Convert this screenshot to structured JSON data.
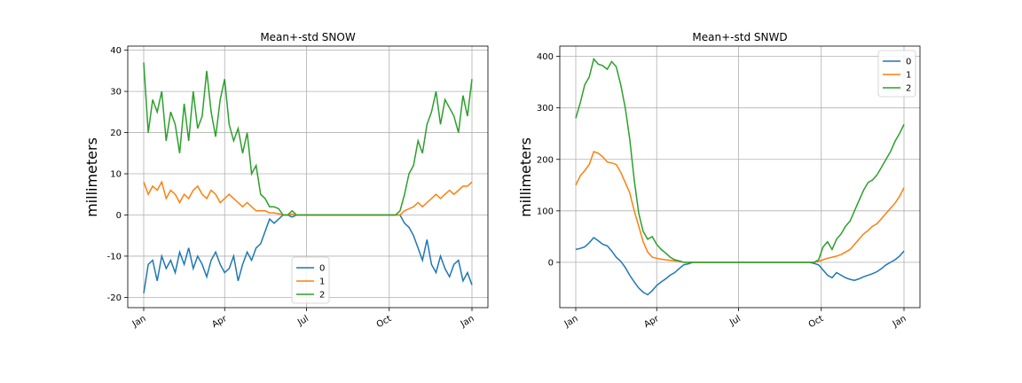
{
  "colors": {
    "series_0": "#1f77b4",
    "series_1": "#ff7f0e",
    "series_2": "#2ca02c",
    "grid": "#b0b0b0",
    "axes": "#000000"
  },
  "chart_data": [
    {
      "type": "line",
      "title": "Mean+-std   SNOW",
      "xlabel": "",
      "ylabel": "millimeters",
      "xlim": [
        0,
        365
      ],
      "ylim": [
        -22.5,
        41
      ],
      "yticks": [
        -20,
        -10,
        0,
        10,
        20,
        30,
        40
      ],
      "xticks": [
        {
          "day": 0,
          "label": "Jan"
        },
        {
          "day": 90,
          "label": "Apr"
        },
        {
          "day": 181,
          "label": "Jul"
        },
        {
          "day": 273,
          "label": "Oct"
        },
        {
          "day": 365,
          "label": "Jan"
        }
      ],
      "grid": true,
      "legend": {
        "position": "lower-center",
        "labels": [
          "0",
          "1",
          "2"
        ]
      },
      "series": [
        {
          "name": "0",
          "x": [
            0,
            5,
            10,
            15,
            20,
            25,
            30,
            35,
            40,
            45,
            50,
            55,
            60,
            65,
            70,
            75,
            80,
            85,
            90,
            95,
            100,
            105,
            110,
            115,
            120,
            125,
            130,
            135,
            140,
            145,
            150,
            155,
            160,
            165,
            170,
            175,
            180,
            185,
            190,
            195,
            200,
            205,
            210,
            215,
            220,
            225,
            230,
            235,
            240,
            245,
            250,
            255,
            260,
            265,
            270,
            275,
            280,
            285,
            290,
            295,
            300,
            305,
            310,
            315,
            320,
            325,
            330,
            335,
            340,
            345,
            350,
            355,
            360,
            365
          ],
          "values": [
            -19,
            -12,
            -11,
            -16,
            -10,
            -13,
            -11,
            -14,
            -9,
            -12,
            -8,
            -13,
            -10,
            -12,
            -15,
            -11,
            -9,
            -12,
            -14,
            -13,
            -10,
            -16,
            -12,
            -9,
            -11,
            -8,
            -7,
            -4,
            -1,
            -2,
            -1,
            0,
            0,
            -0.5,
            0,
            0,
            0,
            0,
            0,
            0,
            0,
            0,
            0,
            0,
            0,
            0,
            0,
            0,
            0,
            0,
            0,
            0,
            0,
            0,
            0,
            0,
            0,
            0,
            -2,
            -3,
            -5,
            -8,
            -11,
            -6,
            -12,
            -14,
            -10,
            -13,
            -15,
            -12,
            -11,
            -16,
            -14,
            -17
          ]
        },
        {
          "name": "1",
          "x": [
            0,
            5,
            10,
            15,
            20,
            25,
            30,
            35,
            40,
            45,
            50,
            55,
            60,
            65,
            70,
            75,
            80,
            85,
            90,
            95,
            100,
            105,
            110,
            115,
            120,
            125,
            130,
            135,
            140,
            145,
            150,
            155,
            160,
            165,
            170,
            175,
            180,
            185,
            190,
            195,
            200,
            205,
            210,
            215,
            220,
            225,
            230,
            235,
            240,
            245,
            250,
            255,
            260,
            265,
            270,
            275,
            280,
            285,
            290,
            295,
            300,
            305,
            310,
            315,
            320,
            325,
            330,
            335,
            340,
            345,
            350,
            355,
            360,
            365
          ],
          "values": [
            8,
            5,
            7,
            6,
            8,
            4,
            6,
            5,
            3,
            5,
            4,
            6,
            7,
            5,
            4,
            6,
            5,
            3,
            4,
            5,
            4,
            3,
            2,
            3,
            2,
            1,
            1,
            1,
            0.5,
            0.5,
            0.3,
            0,
            0,
            0.2,
            0,
            0,
            0,
            0,
            0,
            0,
            0,
            0,
            0,
            0,
            0,
            0,
            0,
            0,
            0,
            0,
            0,
            0,
            0,
            0,
            0,
            0,
            0,
            0,
            1,
            1.5,
            2,
            3,
            2,
            3,
            4,
            5,
            4,
            5,
            6,
            5,
            6,
            7,
            7,
            8
          ]
        },
        {
          "name": "2",
          "x": [
            0,
            5,
            10,
            15,
            20,
            25,
            30,
            35,
            40,
            45,
            50,
            55,
            60,
            65,
            70,
            75,
            80,
            85,
            90,
            95,
            100,
            105,
            110,
            115,
            120,
            125,
            130,
            135,
            140,
            145,
            150,
            155,
            160,
            165,
            170,
            175,
            180,
            185,
            190,
            195,
            200,
            205,
            210,
            215,
            220,
            225,
            230,
            235,
            240,
            245,
            250,
            255,
            260,
            265,
            270,
            275,
            280,
            285,
            290,
            295,
            300,
            305,
            310,
            315,
            320,
            325,
            330,
            335,
            340,
            345,
            350,
            355,
            360,
            365
          ],
          "values": [
            37,
            20,
            28,
            25,
            30,
            18,
            25,
            22,
            15,
            27,
            18,
            30,
            21,
            24,
            35,
            25,
            19,
            28,
            33,
            22,
            18,
            21,
            15,
            20,
            10,
            12,
            5,
            4,
            2,
            2,
            1.5,
            0,
            0,
            1,
            0,
            0,
            0,
            0,
            0,
            0,
            0,
            0,
            0,
            0,
            0,
            0,
            0,
            0,
            0,
            0,
            0,
            0,
            0,
            0,
            0,
            0,
            0,
            1,
            5,
            10,
            12,
            18,
            15,
            22,
            25,
            30,
            22,
            28,
            26,
            24,
            20,
            29,
            24,
            33
          ]
        }
      ]
    },
    {
      "type": "line",
      "title": "Mean+-std   SNWD",
      "xlabel": "",
      "ylabel": "millimeters",
      "xlim": [
        0,
        365
      ],
      "ylim": [
        -88,
        420
      ],
      "yticks": [
        0,
        100,
        200,
        300,
        400
      ],
      "xticks": [
        {
          "day": 0,
          "label": "Jan"
        },
        {
          "day": 90,
          "label": "Apr"
        },
        {
          "day": 181,
          "label": "Jul"
        },
        {
          "day": 273,
          "label": "Oct"
        },
        {
          "day": 365,
          "label": "Jan"
        }
      ],
      "grid": true,
      "legend": {
        "position": "upper-right",
        "labels": [
          "0",
          "1",
          "2"
        ]
      },
      "series": [
        {
          "name": "0",
          "x": [
            0,
            5,
            10,
            15,
            20,
            25,
            30,
            35,
            40,
            45,
            50,
            55,
            60,
            65,
            70,
            75,
            80,
            85,
            90,
            95,
            100,
            105,
            110,
            115,
            120,
            125,
            130,
            135,
            140,
            145,
            150,
            155,
            160,
            165,
            170,
            175,
            180,
            185,
            190,
            195,
            200,
            205,
            210,
            215,
            220,
            225,
            230,
            235,
            240,
            245,
            250,
            255,
            260,
            265,
            270,
            275,
            280,
            285,
            290,
            295,
            300,
            305,
            310,
            315,
            320,
            325,
            330,
            335,
            340,
            345,
            350,
            355,
            360,
            365
          ],
          "values": [
            25,
            27,
            30,
            38,
            48,
            42,
            35,
            32,
            22,
            10,
            2,
            -10,
            -25,
            -38,
            -50,
            -58,
            -63,
            -55,
            -45,
            -38,
            -32,
            -25,
            -20,
            -12,
            -5,
            -3,
            0,
            0,
            0,
            0,
            0,
            0,
            0,
            0,
            0,
            0,
            0,
            0,
            0,
            0,
            0,
            0,
            0,
            0,
            0,
            0,
            0,
            0,
            0,
            0,
            0,
            0,
            0,
            -2,
            -5,
            -15,
            -25,
            -30,
            -20,
            -25,
            -30,
            -33,
            -35,
            -32,
            -28,
            -25,
            -22,
            -18,
            -12,
            -5,
            0,
            5,
            12,
            22
          ]
        },
        {
          "name": "1",
          "x": [
            0,
            5,
            10,
            15,
            20,
            25,
            30,
            35,
            40,
            45,
            50,
            55,
            60,
            65,
            70,
            75,
            80,
            85,
            90,
            95,
            100,
            105,
            110,
            115,
            120,
            125,
            130,
            135,
            140,
            145,
            150,
            155,
            160,
            165,
            170,
            175,
            180,
            185,
            190,
            195,
            200,
            205,
            210,
            215,
            220,
            225,
            230,
            235,
            240,
            245,
            250,
            255,
            260,
            265,
            270,
            275,
            280,
            285,
            290,
            295,
            300,
            305,
            310,
            315,
            320,
            325,
            330,
            335,
            340,
            345,
            350,
            355,
            360,
            365
          ],
          "values": [
            150,
            168,
            178,
            190,
            215,
            212,
            205,
            195,
            193,
            190,
            175,
            155,
            135,
            100,
            70,
            40,
            20,
            10,
            8,
            6,
            5,
            4,
            3,
            2,
            0,
            0,
            0,
            0,
            0,
            0,
            0,
            0,
            0,
            0,
            0,
            0,
            0,
            0,
            0,
            0,
            0,
            0,
            0,
            0,
            0,
            0,
            0,
            0,
            0,
            0,
            0,
            0,
            0,
            0,
            2,
            5,
            8,
            10,
            12,
            15,
            20,
            25,
            35,
            45,
            55,
            62,
            70,
            75,
            85,
            95,
            105,
            115,
            128,
            145
          ]
        },
        {
          "name": "2",
          "x": [
            0,
            5,
            10,
            15,
            20,
            25,
            30,
            35,
            40,
            45,
            50,
            55,
            60,
            65,
            70,
            75,
            80,
            85,
            90,
            95,
            100,
            105,
            110,
            115,
            120,
            125,
            130,
            135,
            140,
            145,
            150,
            155,
            160,
            165,
            170,
            175,
            180,
            185,
            190,
            195,
            200,
            205,
            210,
            215,
            220,
            225,
            230,
            235,
            240,
            245,
            250,
            255,
            260,
            265,
            270,
            275,
            280,
            285,
            290,
            295,
            300,
            305,
            310,
            315,
            320,
            325,
            330,
            335,
            340,
            345,
            350,
            355,
            360,
            365
          ],
          "values": [
            280,
            310,
            345,
            360,
            395,
            385,
            382,
            375,
            390,
            380,
            345,
            300,
            240,
            160,
            95,
            60,
            45,
            50,
            35,
            25,
            18,
            10,
            5,
            3,
            0,
            0,
            0,
            0,
            0,
            0,
            0,
            0,
            0,
            0,
            0,
            0,
            0,
            0,
            0,
            0,
            0,
            0,
            0,
            0,
            0,
            0,
            0,
            0,
            0,
            0,
            0,
            0,
            0,
            0,
            5,
            30,
            40,
            25,
            45,
            55,
            70,
            80,
            100,
            120,
            140,
            155,
            160,
            170,
            185,
            200,
            215,
            235,
            250,
            268
          ]
        }
      ]
    }
  ]
}
